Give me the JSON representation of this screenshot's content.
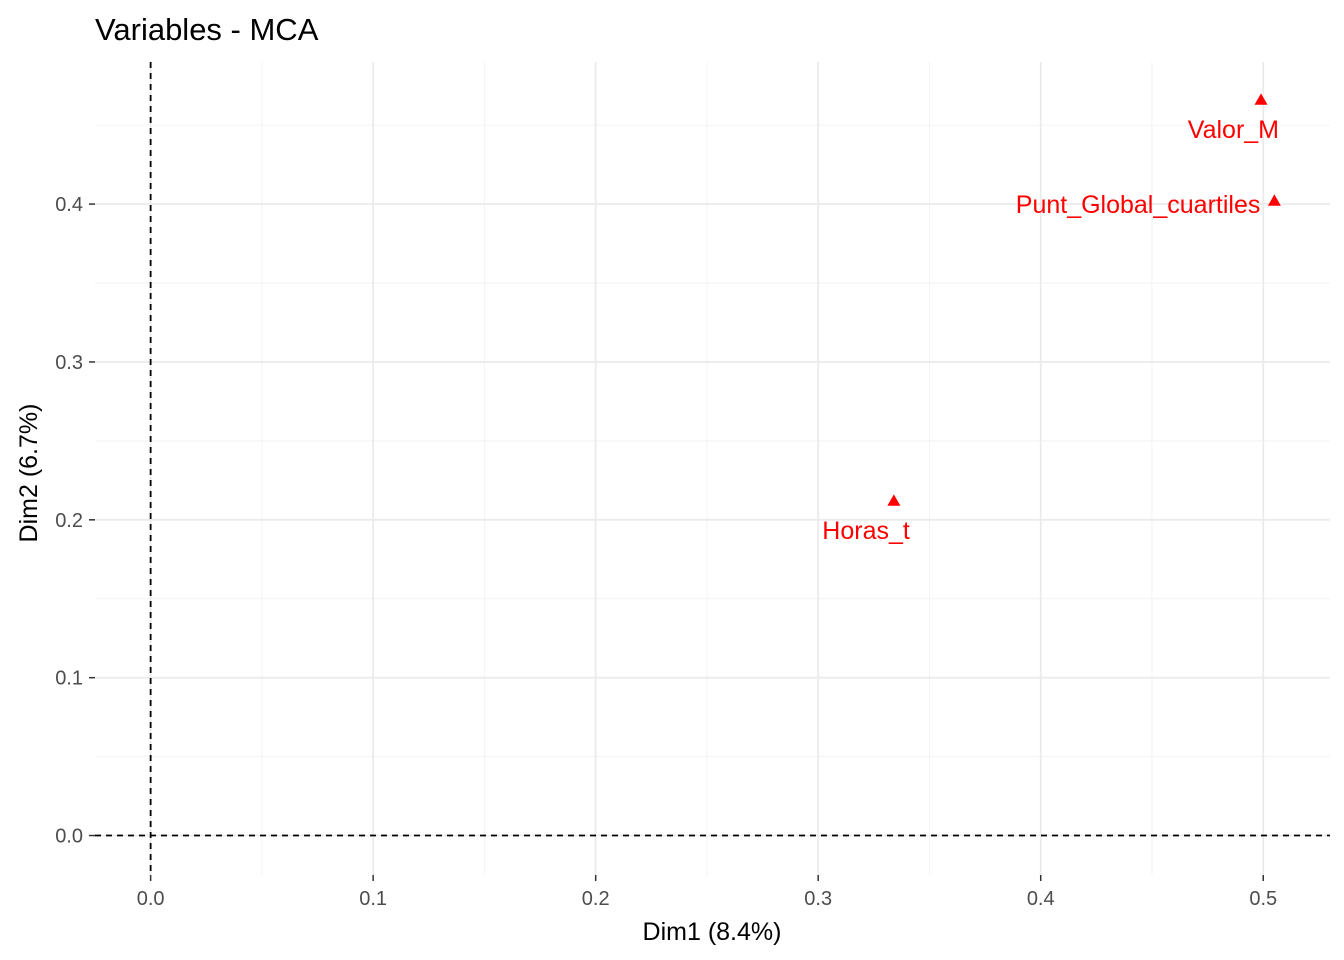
{
  "chart_data": {
    "type": "scatter",
    "title": "Variables - MCA",
    "xlabel": "Dim1 (8.4%)",
    "ylabel": "Dim2 (6.7%)",
    "xlim": [
      -0.025,
      0.53
    ],
    "ylim": [
      -0.025,
      0.49
    ],
    "xticks": [
      0.0,
      0.1,
      0.2,
      0.3,
      0.4,
      0.5
    ],
    "xtick_labels": [
      "0.0",
      "0.1",
      "0.2",
      "0.3",
      "0.4",
      "0.5"
    ],
    "yticks": [
      0.0,
      0.1,
      0.2,
      0.3,
      0.4
    ],
    "ytick_labels": [
      "0.0",
      "0.1",
      "0.2",
      "0.3",
      "0.4"
    ],
    "grid": true,
    "reference_lines": {
      "x": 0,
      "y": 0,
      "style": "dashed"
    },
    "marker": "triangle",
    "color": "#ff0000",
    "points": [
      {
        "label": "Valor_M",
        "x": 0.499,
        "y": 0.466
      },
      {
        "label": "Punt_Global_cuartiles",
        "x": 0.505,
        "y": 0.402
      },
      {
        "label": "Horas_t",
        "x": 0.334,
        "y": 0.212
      }
    ]
  }
}
